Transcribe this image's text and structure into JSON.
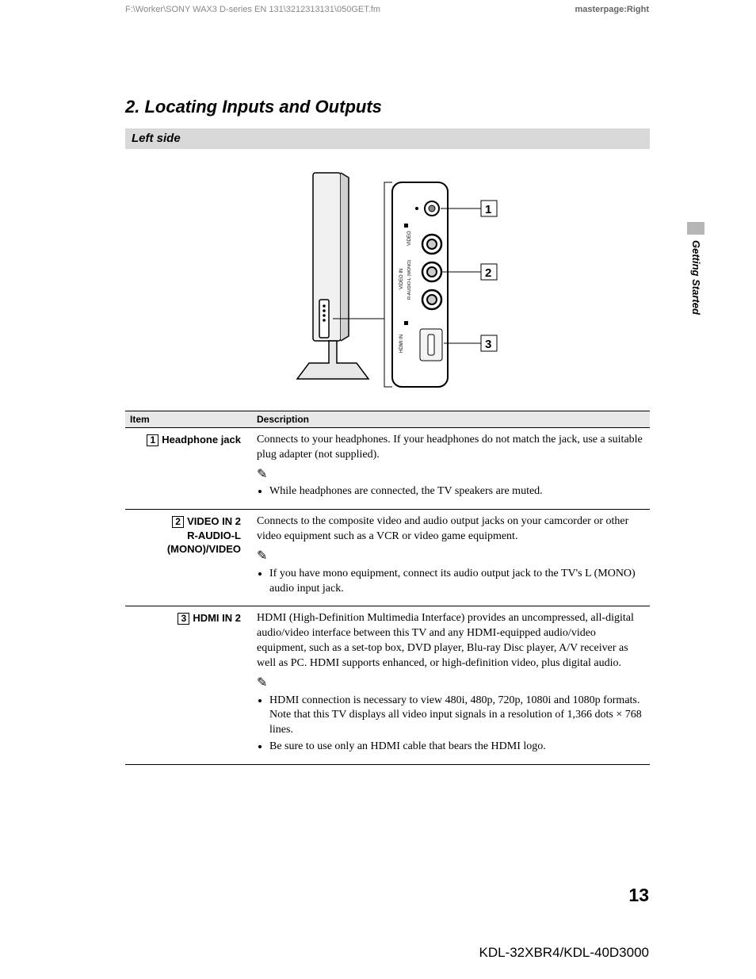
{
  "header": {
    "left": "F:\\Worker\\SONY WAX3 D-series EN 131\\3212313131\\050GET.fm",
    "right": "masterpage:Right"
  },
  "sectionHeading": "2. Locating Inputs and Outputs",
  "subsection": "Left side",
  "sideLabel": "Getting Started",
  "diagram": {
    "callouts": [
      "1",
      "2",
      "3"
    ],
    "panelLabels": {
      "video": "VIDEO",
      "audio": "R-AUDIO-L (MONO)",
      "videoIn": "VIDEO IN",
      "hdmi": "HDMI IN"
    }
  },
  "table": {
    "headers": [
      "Item",
      "Description"
    ],
    "rows": [
      {
        "num": "1",
        "item": "Headphone jack",
        "desc": "Connects to your headphones. If your headphones do not match the jack, use a suitable plug adapter (not supplied).",
        "notes": [
          "While headphones are connected, the TV speakers are muted."
        ]
      },
      {
        "num": "2",
        "item": "VIDEO IN 2\nR-AUDIO-L\n(MONO)/VIDEO",
        "desc": "Connects to the composite video and audio output jacks on your camcorder or other video equipment such as a VCR or video game equipment.",
        "notes": [
          "If you have mono equipment, connect its audio output jack to the TV's L (MONO) audio input jack."
        ]
      },
      {
        "num": "3",
        "item": "HDMI IN 2",
        "desc": "HDMI (High-Definition Multimedia Interface) provides an uncompressed, all-digital audio/video interface between this TV and any HDMI-equipped audio/video equipment, such as a set-top box, DVD player, Blu-ray Disc player, A/V receiver as well as PC. HDMI supports enhanced, or high-definition video, plus digital audio.",
        "notes": [
          "HDMI connection is necessary to view 480i, 480p, 720p, 1080i and 1080p formats. Note that this TV displays all video input signals in a resolution of 1,366 dots × 768 lines.",
          "Be sure to use only an HDMI cable that bears the HDMI logo."
        ]
      }
    ]
  },
  "pageNum": "13",
  "footerModel": "KDL-32XBR4/KDL-40D3000"
}
